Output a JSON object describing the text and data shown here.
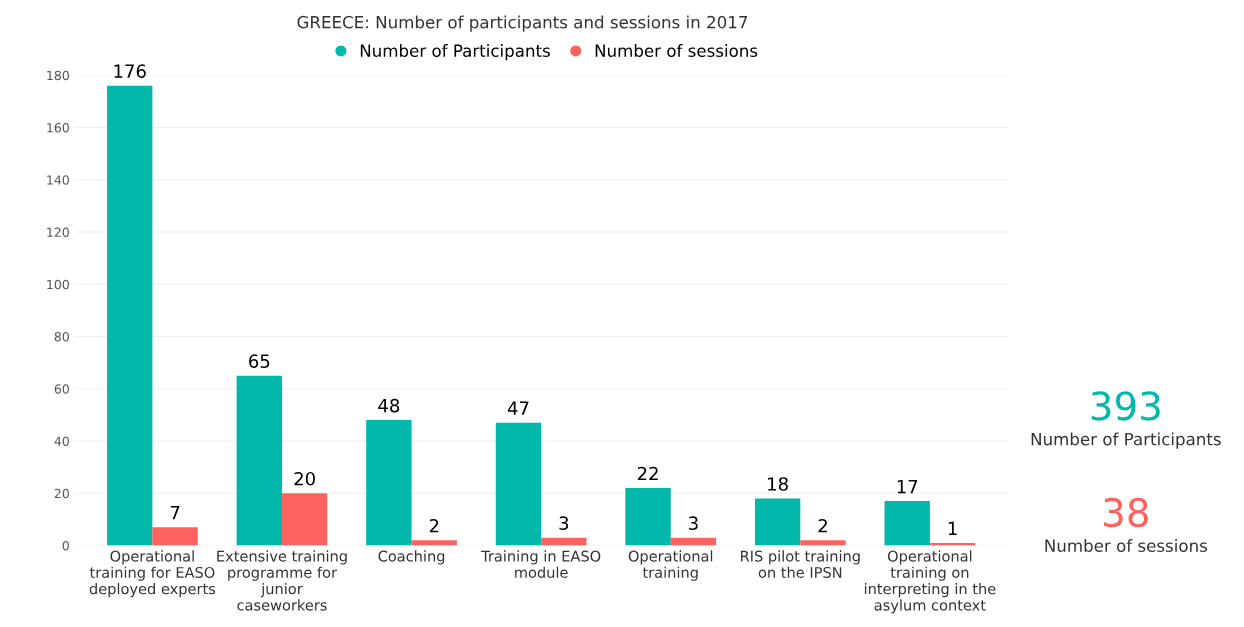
{
  "chart_data": {
    "type": "bar",
    "title": "GREECE: Number of participants and sessions in 2017",
    "categories": [
      "Operational\ntraining for EASO\ndeployed experts",
      "Extensive training\nprogramme for\njunior\ncaseworkers",
      "Coaching",
      "Training in EASO\nmodule",
      "Operational\ntraining",
      "RIS pilot training\non the IPSN",
      "Operational\ntraining on\ninterpreting in the\nasylum context"
    ],
    "series": [
      {
        "name": "Number of Participants",
        "color": "#01b8aa",
        "values": [
          176,
          65,
          48,
          47,
          22,
          18,
          17
        ]
      },
      {
        "name": "Number of sessions",
        "color": "#fd625e",
        "values": [
          7,
          20,
          2,
          3,
          3,
          2,
          1
        ]
      }
    ],
    "ylim": [
      0,
      180
    ],
    "yticks": [
      0,
      20,
      40,
      60,
      80,
      100,
      120,
      140,
      160,
      180
    ],
    "grid": "y",
    "legend": "top",
    "data_labels": true,
    "annotations": [
      "393",
      "Number of Participants",
      "38",
      "Number of sessions"
    ]
  }
}
